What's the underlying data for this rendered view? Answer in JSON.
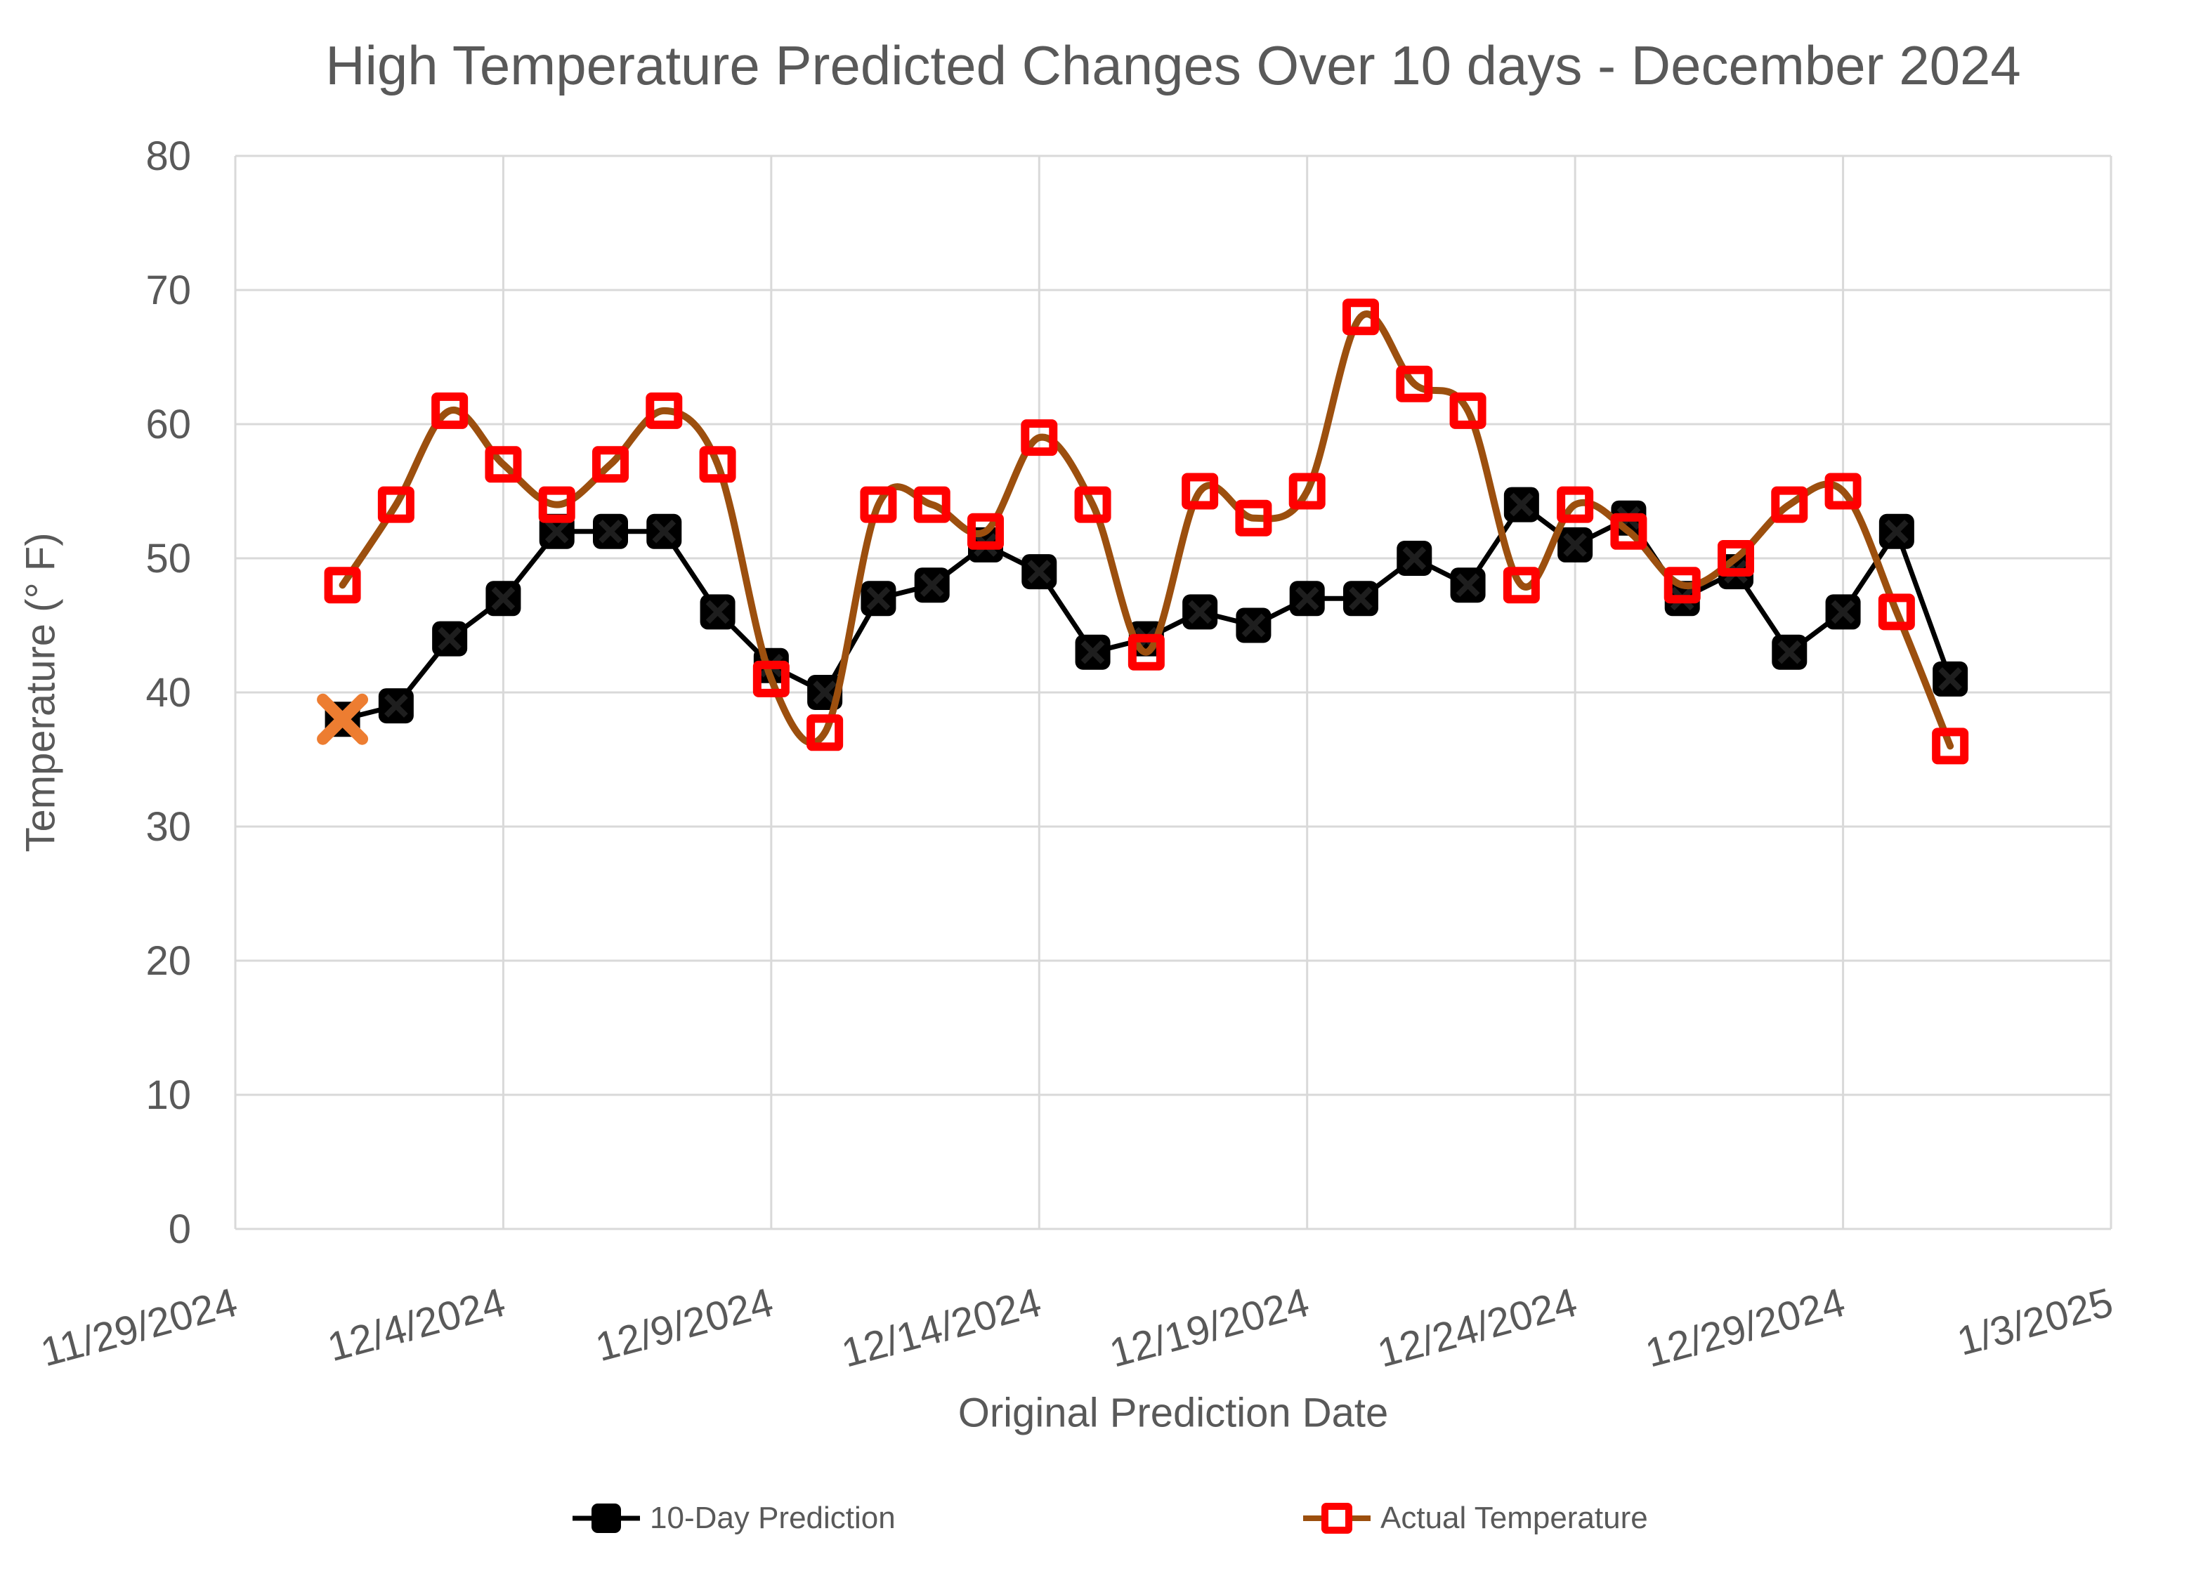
{
  "chart": {
    "title": "High Temperature Predicted Changes Over 10 days - December 2024",
    "x_axis_title": "Original Prediction Date",
    "y_axis_title": "Temperature (° F)",
    "legend": {
      "prediction_label": "10-Day Prediction",
      "actual_label": "Actual Temperature"
    }
  },
  "colors": {
    "prediction_line": "#000000",
    "prediction_marker": "#000000",
    "actual_line": "#9C4F0E",
    "actual_marker": "#FF0000",
    "highlight_x": "#ED7D31",
    "gridline": "#D9D9D9",
    "text": "#595959",
    "background": "#FFFFFF"
  },
  "chart_data": {
    "type": "line",
    "title": "High Temperature Predicted Changes Over 10 days - December 2024",
    "xlabel": "Original Prediction Date",
    "ylabel": "Temperature (° F)",
    "ylim": [
      0,
      80
    ],
    "y_ticks": [
      0,
      10,
      20,
      30,
      40,
      50,
      60,
      70,
      80
    ],
    "x_tick_labels": [
      "11/29/2024",
      "12/4/2024",
      "12/9/2024",
      "12/14/2024",
      "12/19/2024",
      "12/24/2024",
      "12/29/2024",
      "1/3/2025"
    ],
    "x_tick_day_offsets": [
      0,
      5,
      10,
      15,
      20,
      25,
      30,
      35
    ],
    "x_range_days": [
      0,
      35
    ],
    "grid": true,
    "legend_position": "bottom",
    "dates": [
      "12/1/2024",
      "12/2/2024",
      "12/3/2024",
      "12/4/2024",
      "12/5/2024",
      "12/6/2024",
      "12/7/2024",
      "12/8/2024",
      "12/9/2024",
      "12/10/2024",
      "12/11/2024",
      "12/12/2024",
      "12/13/2024",
      "12/14/2024",
      "12/15/2024",
      "12/16/2024",
      "12/17/2024",
      "12/18/2024",
      "12/19/2024",
      "12/20/2024",
      "12/21/2024",
      "12/22/2024",
      "12/23/2024",
      "12/24/2024",
      "12/25/2024",
      "12/26/2024",
      "12/27/2024",
      "12/28/2024",
      "12/29/2024",
      "12/30/2024",
      "12/31/2024"
    ],
    "x_day_offsets": [
      2,
      3,
      4,
      5,
      6,
      7,
      8,
      9,
      10,
      11,
      12,
      13,
      14,
      15,
      16,
      17,
      18,
      19,
      20,
      21,
      22,
      23,
      24,
      25,
      26,
      27,
      28,
      29,
      30,
      31,
      32
    ],
    "series": [
      {
        "name": "10-Day Prediction",
        "color": "#000000",
        "marker": "filled-square",
        "smooth": false,
        "values": [
          38,
          39,
          44,
          47,
          52,
          52,
          52,
          46,
          42,
          40,
          47,
          48,
          51,
          49,
          43,
          44,
          46,
          45,
          47,
          47,
          50,
          48,
          54,
          51,
          53,
          47,
          49,
          43,
          46,
          52,
          41
        ]
      },
      {
        "name": "Actual Temperature",
        "color": "#9C4F0E",
        "marker": "open-square",
        "marker_color": "#FF0000",
        "smooth": true,
        "values": [
          48,
          54,
          61,
          57,
          54,
          57,
          61,
          57,
          41,
          37,
          54,
          54,
          52,
          59,
          54,
          43,
          55,
          53,
          55,
          68,
          63,
          61,
          48,
          54,
          52,
          48,
          50,
          54,
          55,
          46,
          36
        ]
      }
    ],
    "annotations": [
      {
        "type": "x-marker",
        "series": "10-Day Prediction",
        "date": "12/1/2024",
        "value": 38,
        "color": "#ED7D31"
      }
    ]
  }
}
